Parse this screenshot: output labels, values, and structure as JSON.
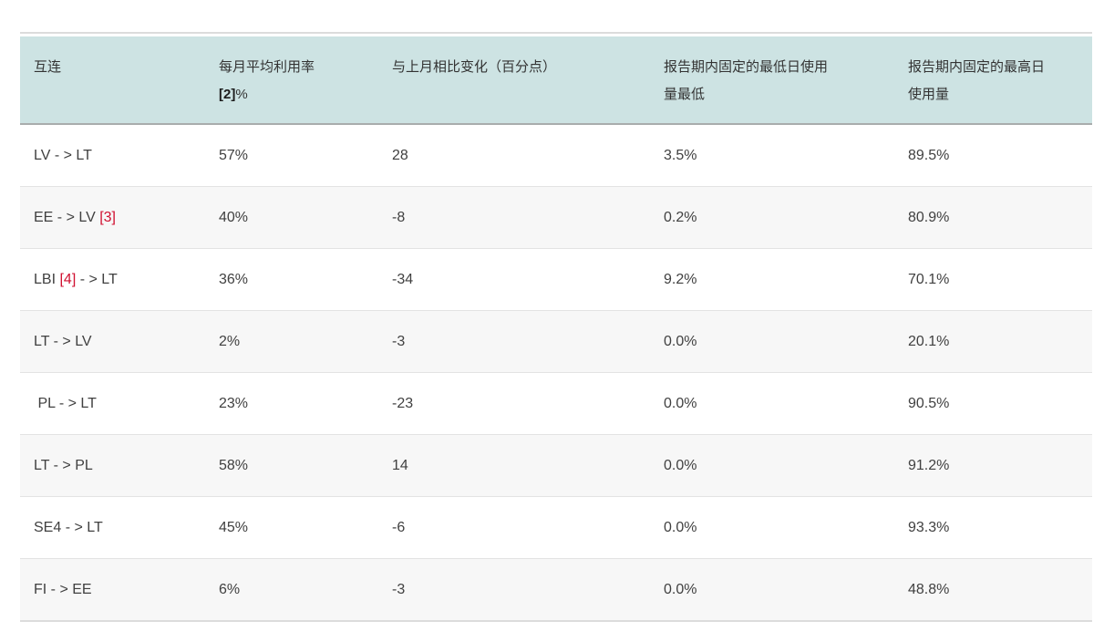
{
  "colors": {
    "header_bg": "#cde3e3",
    "header_border": "#a9adad",
    "row_alt_bg": "#f7f7f7",
    "row_border": "#e3e3e3",
    "table_bottom_border": "#dcdcdc",
    "text": "#404040",
    "ref_red": "#d01030"
  },
  "table": {
    "columns": [
      {
        "id": "interconnection",
        "lines": [
          "互连"
        ]
      },
      {
        "id": "avg_utilization",
        "lines": [
          "每月平均利用率"
        ],
        "footnote_ref": "[2]",
        "after_ref": "%"
      },
      {
        "id": "change_vs_prev_month",
        "lines": [
          "与上月相比变化（百分点）"
        ]
      },
      {
        "id": "min_daily_usage",
        "lines": [
          "报告期内固定的最低日使用",
          "量最低"
        ]
      },
      {
        "id": "max_daily_usage",
        "lines": [
          "报告期内固定的最高日",
          "使用量"
        ]
      }
    ],
    "rows": [
      {
        "name": {
          "pre": "LV - > LT"
        },
        "avg": "57%",
        "change": "28",
        "min": "3.5%",
        "max": "89.5%"
      },
      {
        "name": {
          "pre": "EE - > LV ",
          "ref": "[3]"
        },
        "avg": "40%",
        "change": "-8",
        "min": "0.2%",
        "max": "80.9%"
      },
      {
        "name": {
          "pre": "LBI ",
          "ref": "[4]",
          "post": " - > LT"
        },
        "avg": "36%",
        "change": "-34",
        "min": "9.2%",
        "max": "70.1%"
      },
      {
        "name": {
          "pre": "LT - > LV"
        },
        "avg": "2%",
        "change": "-3",
        "min": "0.0%",
        "max": "20.1%"
      },
      {
        "name": {
          "pre": " PL - > LT"
        },
        "avg": "23%",
        "change": "-23",
        "min": "0.0%",
        "max": "90.5%"
      },
      {
        "name": {
          "pre": "LT - > PL"
        },
        "avg": "58%",
        "change": "14",
        "min": "0.0%",
        "max": "91.2%"
      },
      {
        "name": {
          "pre": "SE4 - > LT"
        },
        "avg": "45%",
        "change": "-6",
        "min": "0.0%",
        "max": "93.3%"
      },
      {
        "name": {
          "pre": "FI - > EE"
        },
        "avg": "6%",
        "change": "-3",
        "min": "0.0%",
        "max": "48.8%"
      }
    ]
  }
}
